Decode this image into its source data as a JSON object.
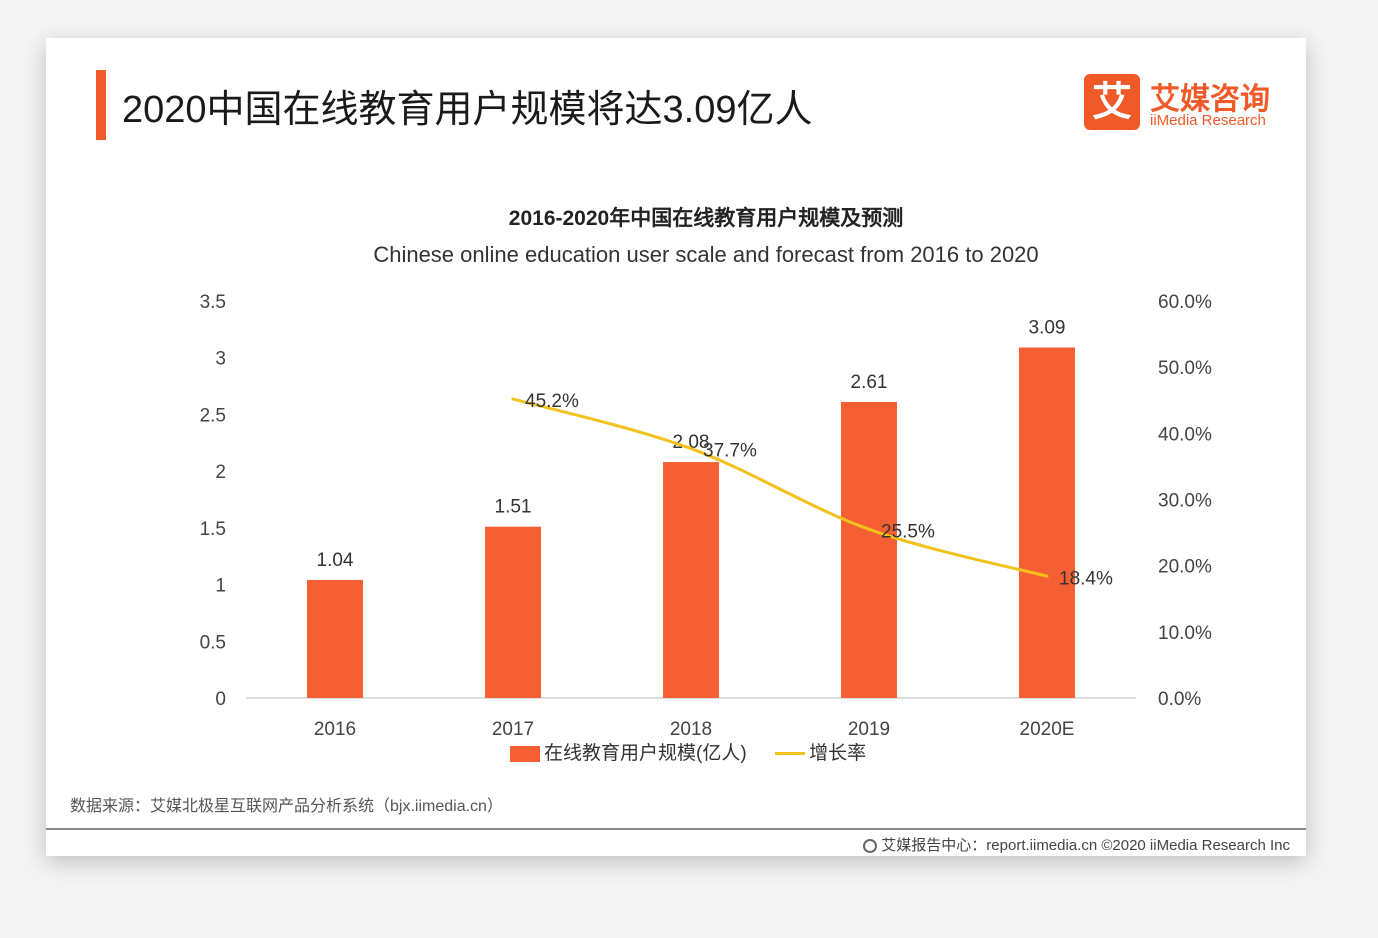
{
  "header": {
    "title": "2020中国在线教育用户规模将达3.09亿人",
    "logo_mark": "艾",
    "logo_cn": "艾媒咨询",
    "logo_en": "iiMedia Research"
  },
  "colors": {
    "accent": "#f05a28",
    "bar": "#f65f33",
    "line": "#f2c11c"
  },
  "chart_data": {
    "type": "bar",
    "title": "2016-2020年中国在线教育用户规模及预测",
    "subtitle": "Chinese online education user scale and forecast from 2016 to 2020",
    "categories": [
      "2016",
      "2017",
      "2018",
      "2019",
      "2020E"
    ],
    "series": [
      {
        "name": "在线教育用户规模(亿人)",
        "type": "bar",
        "axis": "left",
        "values": [
          1.04,
          1.51,
          2.08,
          2.61,
          3.09
        ],
        "labels": [
          "1.04",
          "1.51",
          "2.08",
          "2.61",
          "3.09"
        ]
      },
      {
        "name": "增长率",
        "type": "line",
        "axis": "right",
        "values": [
          null,
          45.2,
          37.7,
          25.5,
          18.4
        ],
        "labels": [
          "",
          "45.2%",
          "37.7%",
          "25.5%",
          "18.4%"
        ]
      }
    ],
    "y_left": {
      "ylim": [
        0,
        3.5
      ],
      "ticks": [
        0,
        0.5,
        1,
        1.5,
        2,
        2.5,
        3,
        3.5
      ],
      "tick_labels": [
        "0",
        "0.5",
        "1",
        "1.5",
        "2",
        "2.5",
        "3",
        "3.5"
      ]
    },
    "y_right": {
      "ylim": [
        0,
        60
      ],
      "ticks": [
        0,
        10,
        20,
        30,
        40,
        50,
        60
      ],
      "tick_labels": [
        "0.0%",
        "10.0%",
        "20.0%",
        "30.0%",
        "40.0%",
        "50.0%",
        "60.0%"
      ]
    },
    "grid": false,
    "legend_position": "bottom"
  },
  "footer": {
    "source": "数据来源：艾媒北极星互联网产品分析系统（bjx.iimedia.cn）",
    "credit": "艾媒报告中心：report.iimedia.cn  ©2020 iiMedia Research Inc"
  }
}
